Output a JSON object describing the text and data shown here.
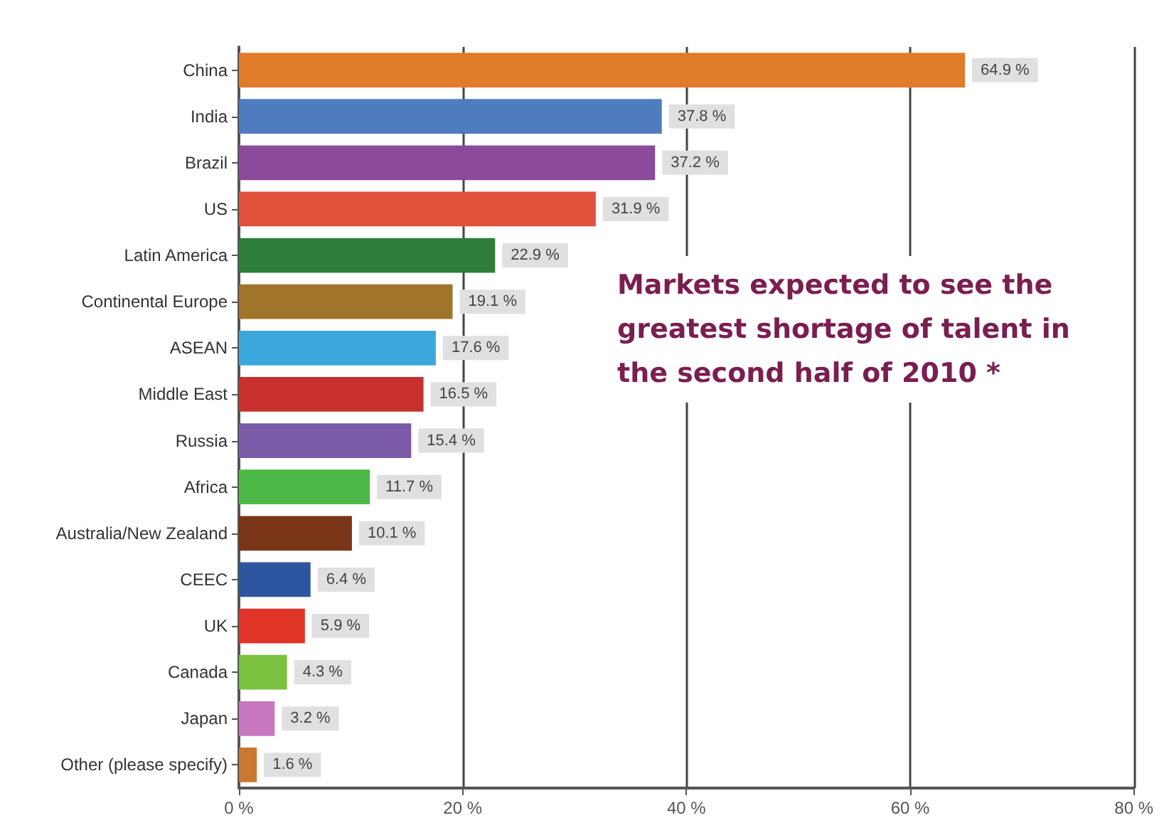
{
  "chart_data": {
    "type": "bar",
    "orientation": "horizontal",
    "title": "Markets expected to see the greatest shortage of talent in the second half of 2010 *",
    "categories": [
      "China",
      "India",
      "Brazil",
      "US",
      "Latin America",
      "Continental Europe",
      "ASEAN",
      "Middle East",
      "Russia",
      "Africa",
      "Australia/New Zealand",
      "CEEC",
      "UK",
      "Canada",
      "Japan",
      "Other (please specify)"
    ],
    "values": [
      64.9,
      37.8,
      37.2,
      31.9,
      22.9,
      19.1,
      17.6,
      16.5,
      15.4,
      11.7,
      10.1,
      6.4,
      5.9,
      4.3,
      3.2,
      1.6
    ],
    "value_labels": [
      "64.9 %",
      "37.8 %",
      "37.2 %",
      "31.9 %",
      "22.9 %",
      "19.1 %",
      "17.6 %",
      "16.5 %",
      "15.4 %",
      "11.7 %",
      "10.1 %",
      "6.4 %",
      "5.9 %",
      "4.3 %",
      "3.2 %",
      "1.6 %"
    ],
    "colors": [
      "#e07b2a",
      "#4f7bbf",
      "#8b4a9c",
      "#e0503a",
      "#2e7d3a",
      "#a0742a",
      "#3aa8dc",
      "#c8302e",
      "#7b5aa8",
      "#4cb848",
      "#7a3518",
      "#2e55a0",
      "#e03428",
      "#7cc040",
      "#c878c0",
      "#c87830"
    ],
    "xlim": [
      0,
      80
    ],
    "xticks": [
      {
        "value": 0,
        "label": "0 %"
      },
      {
        "value": 20,
        "label": "20 %"
      },
      {
        "value": 40,
        "label": "40 %"
      },
      {
        "value": 60,
        "label": "60 %"
      },
      {
        "value": 80,
        "label": "80 %"
      }
    ],
    "grid": "x"
  }
}
